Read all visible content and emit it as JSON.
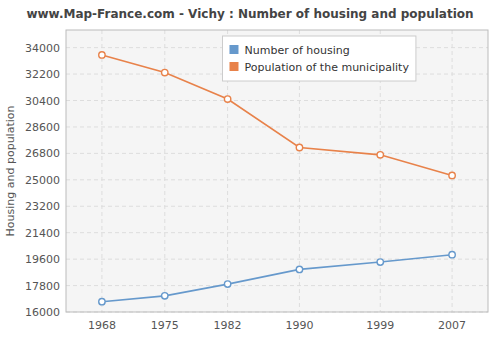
{
  "chart_data": {
    "type": "line",
    "title": "www.Map-France.com - Vichy : Number of housing and population",
    "y_label": "Housing and population",
    "x": [
      1968,
      1975,
      1982,
      1990,
      1999,
      2007
    ],
    "series": [
      {
        "name": "Population of the municipality",
        "color": "#e8824a",
        "values": [
          33500,
          32300,
          30500,
          27200,
          26700,
          25300
        ]
      },
      {
        "name": "Number of housing",
        "color": "#6699cc",
        "values": [
          16700,
          17100,
          17900,
          18900,
          19400,
          19900
        ]
      }
    ],
    "xlim": [
      1964,
      2011
    ],
    "xticks": [
      1968,
      1975,
      1982,
      1990,
      1999,
      2007
    ],
    "ylim": [
      16000,
      35200
    ],
    "yticks": [
      16000,
      17800,
      19600,
      21400,
      23200,
      25000,
      26800,
      28600,
      30400,
      32200,
      34000
    ],
    "grid": true,
    "legend": "top",
    "marker": "circle"
  }
}
